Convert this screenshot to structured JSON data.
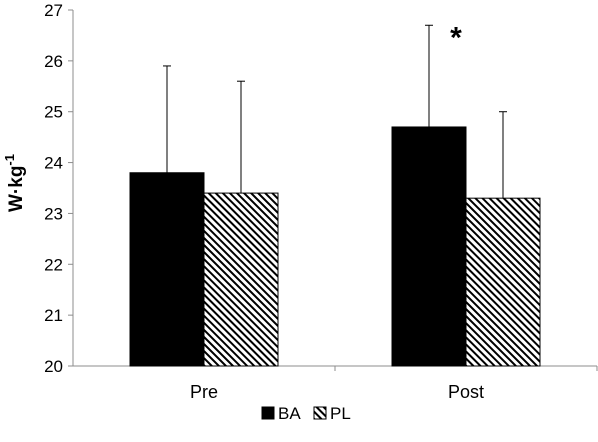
{
  "chart_data": {
    "type": "bar",
    "title": "",
    "categories": [
      "Pre",
      "Post"
    ],
    "ylabel": "W·kg",
    "ylabel_superscript": "-1",
    "ylim": [
      20,
      27
    ],
    "yticks": [
      20,
      21,
      22,
      23,
      24,
      25,
      26,
      27
    ],
    "grid": false,
    "legend": "bottom-center",
    "series": [
      {
        "name": "BA",
        "fill": "solid",
        "color": "#000000",
        "values": [
          23.8,
          24.7
        ],
        "error_upper": [
          25.9,
          26.7
        ]
      },
      {
        "name": "PL",
        "fill": "diagonal-hatch",
        "color": "#000000",
        "values": [
          23.4,
          23.3
        ],
        "error_upper": [
          25.6,
          25.0
        ]
      }
    ],
    "annotations": [
      {
        "text": "*",
        "category": "Post",
        "series": "BA"
      }
    ]
  }
}
